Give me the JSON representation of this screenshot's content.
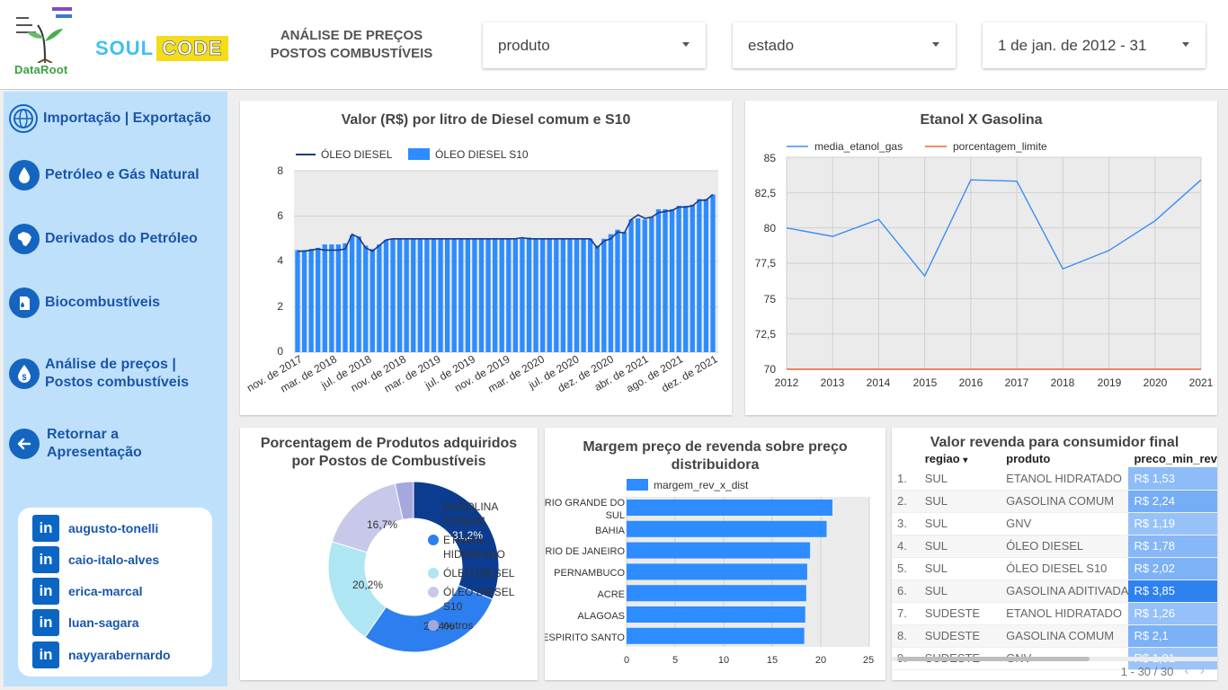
{
  "header": {
    "dataroot_label": "DataRoot",
    "soul_text": "SOUL",
    "code_text": "CODE",
    "title_line1": "ANÁLISE DE PREÇOS",
    "title_line2": "POSTOS COMBUSTÍVEIS",
    "filters": {
      "produto": "produto",
      "estado": "estado",
      "data": "1 de jan. de 2012 - 31"
    }
  },
  "sidebar": {
    "items": [
      {
        "label": "Importação | Exportação",
        "icon": "globe-icon"
      },
      {
        "label": "Petróleo e Gás Natural",
        "icon": "drop-icon"
      },
      {
        "label": "Derivados do Petróleo",
        "icon": "brazil-map-icon"
      },
      {
        "label": "Biocombustíveis",
        "icon": "fuel-can-icon"
      },
      {
        "label_line1": "Análise de preços |",
        "label_line2": "Postos combustíveis",
        "icon": "money-drop-icon"
      },
      {
        "label_line1": "Retornar a",
        "label_line2": "Apresentação",
        "icon": "arrow-left-icon"
      }
    ],
    "linkedin": [
      "augusto-tonelli",
      "caio-italo-alves",
      "erica-marcal",
      "luan-sagara",
      "nayyarabernardo"
    ],
    "linkedin_glyph": "in"
  },
  "chart_diesel": {
    "title": "Valor (R$) por litro de Diesel comum e S10",
    "legend_line": "ÓLEO DIESEL",
    "legend_bar": "ÓLEO DIESEL S10",
    "y_ticks": [
      "0",
      "2",
      "4",
      "6",
      "8"
    ],
    "x_ticks": [
      "nov. de 2017",
      "mar. de 2018",
      "jul. de 2018",
      "nov. de 2018",
      "mar. de 2019",
      "jul. de 2019",
      "nov. de 2019",
      "mar. de 2020",
      "jul. de 2020",
      "dez. de 2020",
      "abr. de 2021",
      "ago. de 2021",
      "dez. de 2021"
    ]
  },
  "chart_etanol": {
    "title": "Etanol X Gasolina",
    "legend_1": "media_etanol_gas",
    "legend_2": "porcentagem_limite",
    "y_ticks": [
      "70",
      "72,5",
      "75",
      "77,5",
      "80",
      "82,5",
      "85"
    ],
    "x_ticks": [
      "2012",
      "2013",
      "2014",
      "2015",
      "2016",
      "2017",
      "2018",
      "2019",
      "2020",
      "2021"
    ]
  },
  "chart_pie": {
    "title_line1": "Porcentagem de Produtos adquiridos",
    "title_line2": "por Postos de Combustíveis",
    "labels": [
      "31,2%",
      "28,4%",
      "20,2%",
      "16,7%"
    ],
    "legend": [
      {
        "l1": "GASOLINA",
        "l2": "COMUM"
      },
      {
        "l1": "ETANOL",
        "l2": "HIDRATADO"
      },
      {
        "l1": "ÓLEO DIESEL",
        "l2": ""
      },
      {
        "l1": "ÓLEO DIESEL",
        "l2": "S10"
      },
      {
        "l1": "outros",
        "l2": ""
      }
    ]
  },
  "chart_margem": {
    "title_line1": "Margem preço de revenda sobre preço",
    "title_line2": "distribuidora",
    "legend": "margem_rev_x_dist",
    "x_ticks": [
      "0",
      "5",
      "10",
      "15",
      "20",
      "25"
    ],
    "cat_labels": [
      {
        "l1": "RIO GRANDE DO",
        "l2": "SUL"
      },
      {
        "l1": "BAHIA",
        "l2": ""
      },
      {
        "l1": "RIO DE JANEIRO",
        "l2": ""
      },
      {
        "l1": "PERNAMBUCO",
        "l2": ""
      },
      {
        "l1": "ACRE",
        "l2": ""
      },
      {
        "l1": "ALAGOAS",
        "l2": ""
      },
      {
        "l1": "ESPIRITO SANTO",
        "l2": ""
      }
    ]
  },
  "table_revenda": {
    "title": "Valor revenda para consumidor final",
    "headers": {
      "regiao": "regiao",
      "produto": "produto",
      "preco": "preco_min_rev"
    },
    "sort_glyph": "▾",
    "rows": [
      {
        "idx": "1.",
        "regiao": "SUL",
        "produto": "ETANOL HIDRATADO",
        "preco": "R$ 1,53",
        "v": 1.53
      },
      {
        "idx": "2.",
        "regiao": "SUL",
        "produto": "GASOLINA COMUM",
        "preco": "R$ 2,24",
        "v": 2.24
      },
      {
        "idx": "3.",
        "regiao": "SUL",
        "produto": "GNV",
        "preco": "R$ 1,19",
        "v": 1.19
      },
      {
        "idx": "4.",
        "regiao": "SUL",
        "produto": "ÓLEO DIESEL",
        "preco": "R$ 1,78",
        "v": 1.78
      },
      {
        "idx": "5.",
        "regiao": "SUL",
        "produto": "ÓLEO DIESEL S10",
        "preco": "R$ 2,02",
        "v": 2.02
      },
      {
        "idx": "6.",
        "regiao": "SUL",
        "produto": "GASOLINA ADITIVADA",
        "preco": "R$ 3,85",
        "v": 3.85
      },
      {
        "idx": "7.",
        "regiao": "SUDESTE",
        "produto": "ETANOL HIDRATADO",
        "preco": "R$ 1,26",
        "v": 1.26
      },
      {
        "idx": "8.",
        "regiao": "SUDESTE",
        "produto": "GASOLINA COMUM",
        "preco": "R$ 2,1",
        "v": 2.1
      },
      {
        "idx": "9.",
        "regiao": "SUDESTE",
        "produto": "GNV",
        "preco": "R$ 1,01",
        "v": 1.01
      }
    ],
    "pager": "1 - 30 / 30",
    "prev_glyph": "‹",
    "next_glyph": "›"
  },
  "colors": {
    "bar_blue": "#2d8cff",
    "line_dark": "#1a3a8a",
    "etanol_line": "#3a8ff0",
    "limite_line": "#f06030",
    "pie": [
      "#0b3c8f",
      "#2d7fef",
      "#aee6f3",
      "#c8c8ea",
      "#a4a8dc"
    ],
    "sidebar_bg": "#bfe0fb",
    "nav_text": "#1a56a8"
  },
  "chart_data": [
    {
      "type": "bar",
      "title": "Valor (R$) por litro de Diesel comum e S10",
      "ylim": [
        0,
        8
      ],
      "x_range": [
        "nov. de 2017",
        "dez. de 2021"
      ],
      "series": [
        {
          "name": "ÓLEO DIESEL S10",
          "kind": "bar",
          "values": [
            4.5,
            4.5,
            4.55,
            4.6,
            4.75,
            4.75,
            4.75,
            4.8,
            5.15,
            5.1,
            4.7,
            4.55,
            4.75,
            4.95,
            5.0,
            5.0,
            5.0,
            5.0,
            5.0,
            5.0,
            5.0,
            5.0,
            5.0,
            5.0,
            5.0,
            5.0,
            5.0,
            5.0,
            5.0,
            5.0,
            5.0,
            5.0,
            5.0,
            5.05,
            5.05,
            5.0,
            5.0,
            5.0,
            5.0,
            5.0,
            5.0,
            5.0,
            5.0,
            5.0,
            4.7,
            5.0,
            5.2,
            5.4,
            5.3,
            5.85,
            5.9,
            5.85,
            5.95,
            6.3,
            6.3,
            6.3,
            6.45,
            6.45,
            6.5,
            6.75,
            6.75,
            6.95
          ]
        },
        {
          "name": "ÓLEO DIESEL",
          "kind": "line",
          "values": [
            4.45,
            4.45,
            4.5,
            4.55,
            4.5,
            4.5,
            4.5,
            4.55,
            5.2,
            5.05,
            4.6,
            4.45,
            4.7,
            4.95,
            5.0,
            5.0,
            5.0,
            5.0,
            5.0,
            5.0,
            5.0,
            5.0,
            5.0,
            5.0,
            5.0,
            5.0,
            5.0,
            5.0,
            5.0,
            5.0,
            5.0,
            5.0,
            5.0,
            5.05,
            5.0,
            5.0,
            5.0,
            5.0,
            5.0,
            5.0,
            5.0,
            5.0,
            5.0,
            5.0,
            4.6,
            4.9,
            5.0,
            5.3,
            5.25,
            5.85,
            6.05,
            5.9,
            5.95,
            6.15,
            6.2,
            6.25,
            6.4,
            6.4,
            6.45,
            6.7,
            6.7,
            6.95
          ]
        }
      ]
    },
    {
      "type": "line",
      "title": "Etanol X Gasolina",
      "x": [
        2012,
        2013,
        2014,
        2015,
        2016,
        2017,
        2018,
        2019,
        2020,
        2021
      ],
      "ylim": [
        70,
        85
      ],
      "series": [
        {
          "name": "media_etanol_gas",
          "values": [
            80.0,
            79.4,
            80.6,
            76.6,
            83.4,
            83.3,
            77.1,
            78.4,
            80.5,
            83.4
          ]
        },
        {
          "name": "porcentagem_limite",
          "values": [
            70,
            70,
            70,
            70,
            70,
            70,
            70,
            70,
            70,
            70
          ]
        }
      ]
    },
    {
      "type": "pie",
      "title": "Porcentagem de Produtos adquiridos por Postos de Combustíveis",
      "categories": [
        "GASOLINA COMUM",
        "ETANOL HIDRATADO",
        "ÓLEO DIESEL",
        "ÓLEO DIESEL S10",
        "outros"
      ],
      "values": [
        31.2,
        28.4,
        20.2,
        16.7,
        3.5
      ]
    },
    {
      "type": "bar",
      "orientation": "horizontal",
      "title": "Margem preço de revenda sobre preço distribuidora",
      "categories": [
        "RIO GRANDE DO SUL",
        "BAHIA",
        "RIO DE JANEIRO",
        "PERNAMBUCO",
        "ACRE",
        "ALAGOAS",
        "ESPIRITO SANTO"
      ],
      "series": [
        {
          "name": "margem_rev_x_dist",
          "values": [
            21.2,
            20.6,
            18.9,
            18.6,
            18.5,
            18.4,
            18.3
          ]
        }
      ],
      "xlim": [
        0,
        25
      ]
    }
  ]
}
